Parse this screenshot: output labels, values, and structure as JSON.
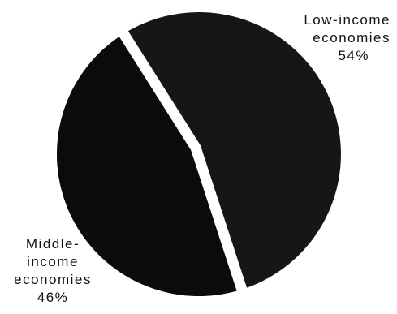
{
  "chart_data": {
    "type": "pie",
    "title": "",
    "slices": [
      {
        "name_lines": [
          "Low-income",
          "economies"
        ],
        "value": 54,
        "value_label": "54%",
        "color": "#141414",
        "texture": "speckled"
      },
      {
        "name_lines": [
          "Middle-",
          "income",
          "economies"
        ],
        "value": 46,
        "value_label": "46%",
        "color": "#0b0b0b",
        "texture": "solid"
      }
    ],
    "separator_color": "#ffffff",
    "legend": "none",
    "labels_placement": "outside"
  }
}
